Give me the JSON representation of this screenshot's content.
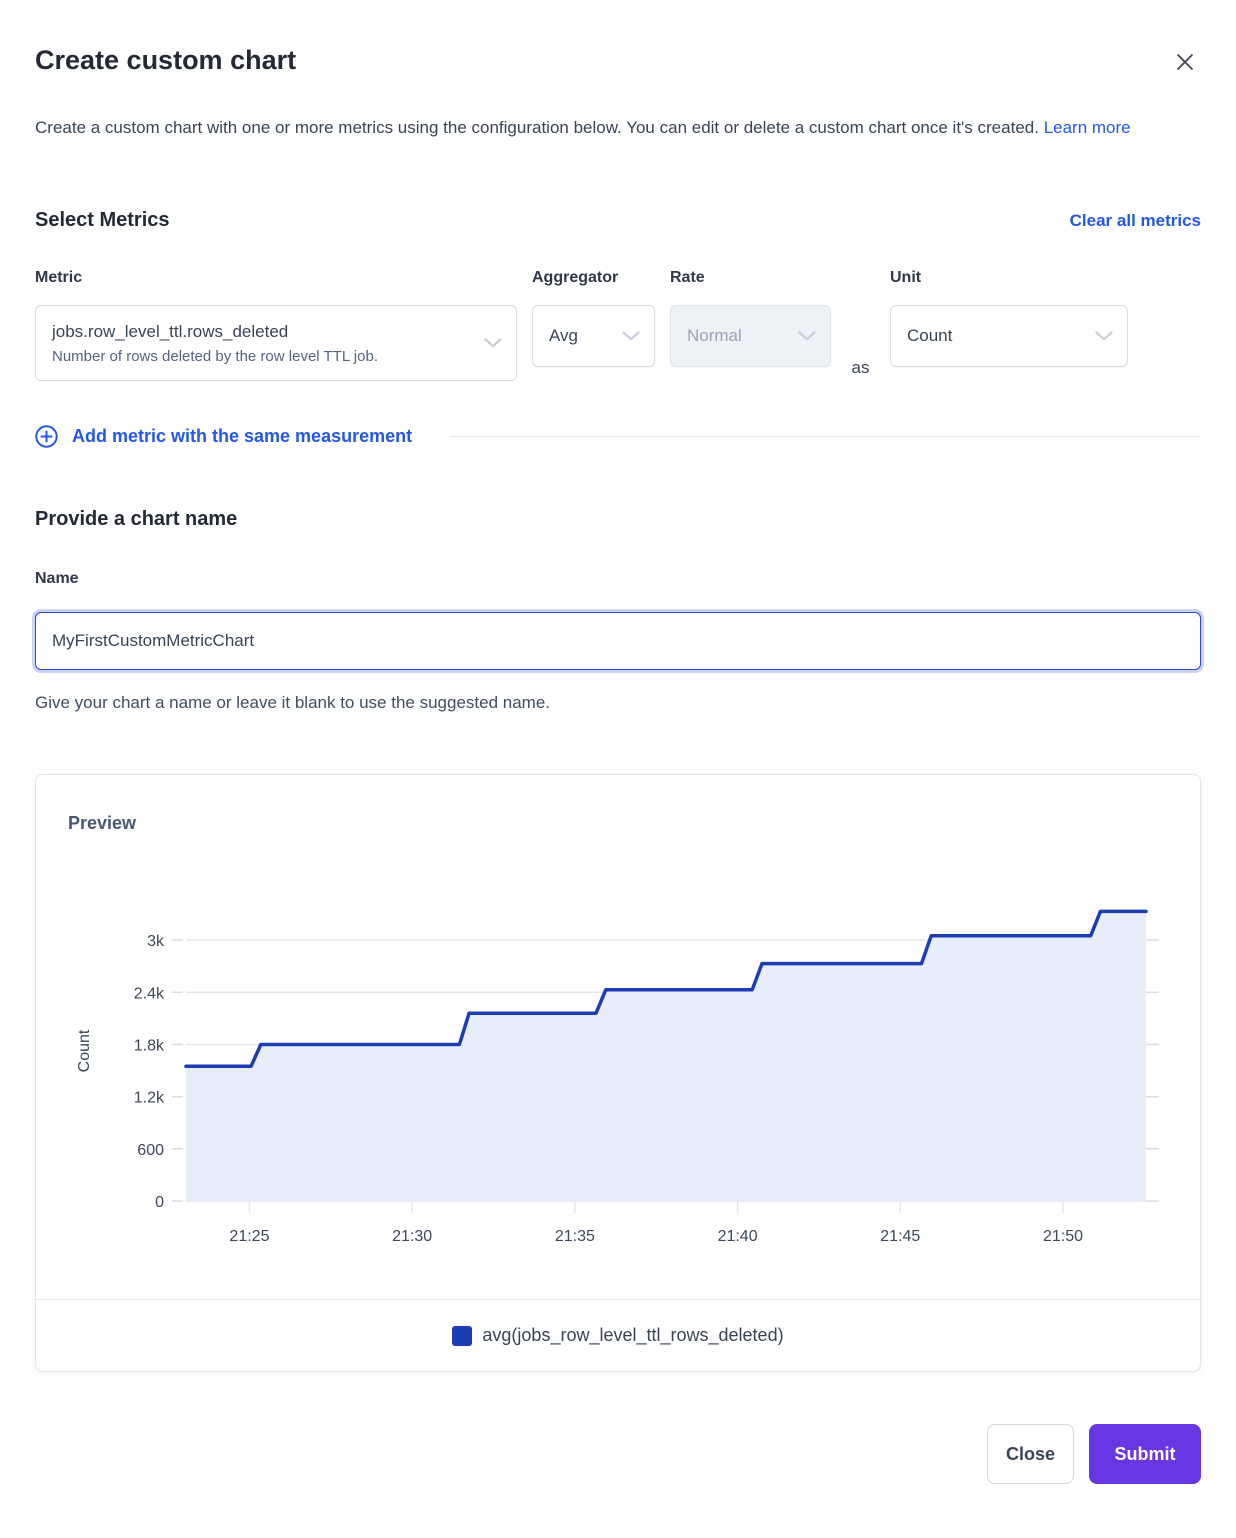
{
  "modal": {
    "title": "Create custom chart",
    "description": "Create a custom chart with one or more metrics using the configuration below. You can edit or delete a custom chart once it's created.",
    "learn_more_label": "Learn more"
  },
  "icons": {
    "close": "x-mark",
    "dropdown": "chevron-down",
    "add_metric": "plus-circle"
  },
  "metrics_section": {
    "heading": "Select Metrics",
    "clear_all_label": "Clear all metrics",
    "labels": {
      "metric": "Metric",
      "aggregator": "Aggregator",
      "rate": "Rate",
      "unit": "Unit"
    },
    "metric_row": {
      "metric_value": "jobs.row_level_ttl.rows_deleted",
      "metric_description": "Number of rows deleted by the row level TTL job.",
      "aggregator_value": "Avg",
      "rate_value": "Normal",
      "rate_disabled": true,
      "as_label": "as",
      "unit_value": "Count"
    },
    "add_metric_label": "Add metric with the same measurement"
  },
  "name_section": {
    "heading": "Provide a chart name",
    "label": "Name",
    "value": "MyFirstCustomMetricChart",
    "helper": "Give your chart a name or leave it blank to use the suggested name."
  },
  "preview": {
    "heading": "Preview"
  },
  "chart_data": {
    "type": "area",
    "subtype": "step-line with fill, cumulative count over time",
    "title": "Preview",
    "xlabel": "",
    "ylabel": "Count",
    "x_range": [
      "21:23",
      "21:53"
    ],
    "ylim": [
      0,
      3450
    ],
    "t_domain": [
      23.05,
      52.55
    ],
    "grid": true,
    "grid_color": "#e3e7ee",
    "tick_color": "#d9dde4",
    "legend_position": "bottom-center",
    "yticks": [
      {
        "v": 0,
        "label": "0"
      },
      {
        "v": 600,
        "label": "600"
      },
      {
        "v": 1200,
        "label": "1.2k"
      },
      {
        "v": 1800,
        "label": "1.8k"
      },
      {
        "v": 2400,
        "label": "2.4k"
      },
      {
        "v": 3000,
        "label": "3k"
      }
    ],
    "xticks": [
      {
        "t": 25,
        "label": "21:25"
      },
      {
        "t": 30,
        "label": "21:30"
      },
      {
        "t": 35,
        "label": "21:35"
      },
      {
        "t": 40,
        "label": "21:40"
      },
      {
        "t": 45,
        "label": "21:45"
      },
      {
        "t": 50,
        "label": "21:50"
      }
    ],
    "series": [
      {
        "name": "avg(jobs_row_level_ttl_rows_deleted)",
        "color": "#1d3eb2",
        "fill": "#e8edfa",
        "points": [
          [
            23.05,
            1550
          ],
          [
            25.05,
            1550
          ],
          [
            25.35,
            1800
          ],
          [
            31.45,
            1800
          ],
          [
            31.75,
            2160
          ],
          [
            35.65,
            2160
          ],
          [
            35.95,
            2430
          ],
          [
            40.45,
            2430
          ],
          [
            40.75,
            2730
          ],
          [
            45.65,
            2730
          ],
          [
            45.95,
            3050
          ],
          [
            50.85,
            3050
          ],
          [
            51.15,
            3330
          ],
          [
            52.55,
            3330
          ]
        ]
      }
    ],
    "legend": [
      {
        "label": "avg(jobs_row_level_ttl_rows_deleted)",
        "color": "#1d3eb2"
      }
    ]
  },
  "footer": {
    "close_label": "Close",
    "submit_label": "Submit"
  },
  "colors": {
    "heading": "#242a35",
    "body": "#394455",
    "link": "#2458e8",
    "series_blue": "#1d3eb2",
    "series_fill": "#e8edfa",
    "submit_purple": "#6936e4",
    "disabled_bg": "#eef1f6"
  }
}
